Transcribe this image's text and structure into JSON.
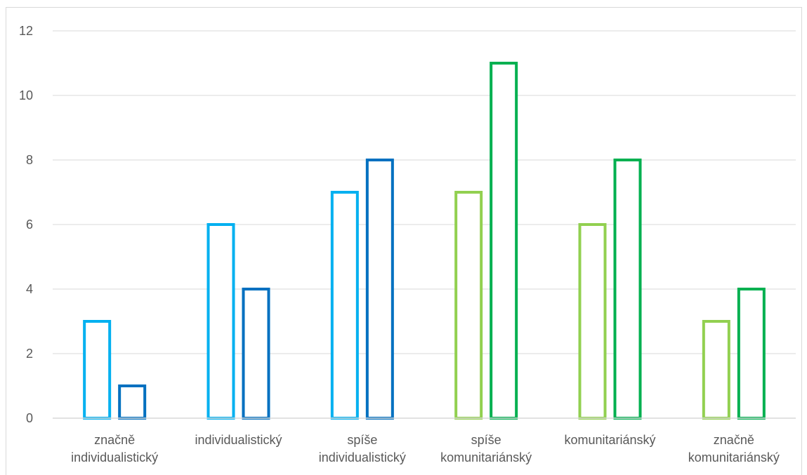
{
  "chart_data": {
    "type": "bar",
    "title": "",
    "xlabel": "",
    "ylabel": "",
    "ylim": [
      0,
      12
    ],
    "yticks": [
      0,
      2,
      4,
      6,
      8,
      10,
      12
    ],
    "grid": true,
    "legend": "none",
    "categories": [
      [
        "značně",
        "individualistický"
      ],
      [
        "individualistický"
      ],
      [
        "spíše",
        "individualistický"
      ],
      [
        "spíše",
        "komunitariánský"
      ],
      [
        "komunitariánský"
      ],
      [
        "značně",
        "komunitariánský"
      ]
    ],
    "series": [
      {
        "values": [
          3,
          6,
          7,
          7,
          6,
          3
        ]
      },
      {
        "values": [
          1,
          4,
          8,
          11,
          8,
          4
        ]
      }
    ],
    "colors": {
      "individualist_first": "#00b0f0",
      "individualist_second": "#0070c0",
      "communitarian_first": "#92d050",
      "communitarian_second": "#00b050",
      "axis": "#d9d9d9",
      "grid": "#d9d9d9"
    }
  }
}
